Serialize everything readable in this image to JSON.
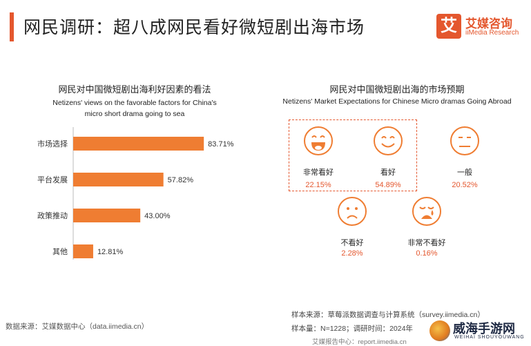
{
  "header": {
    "title": "网民调研：超八成网民看好微短剧出海市场",
    "logo_mark": "艾",
    "logo_cn": "艾媒咨询",
    "logo_en": "iiMedia Research"
  },
  "left_panel": {
    "title_cn": "网民对中国微短剧出海利好因素的看法",
    "title_en_line1": "Netizens' views on the favorable factors for China's",
    "title_en_line2": "micro short drama going to sea"
  },
  "right_panel": {
    "title_cn": "网民对中国微短剧出海的市场预期",
    "title_en": "Netizens' Market Expectations for Chinese Micro dramas Going Abroad",
    "items": [
      {
        "label": "非常看好",
        "value": "22.15%",
        "face": "very-happy"
      },
      {
        "label": "看好",
        "value": "54.89%",
        "face": "happy"
      },
      {
        "label": "一般",
        "value": "20.52%",
        "face": "neutral"
      },
      {
        "label": "不看好",
        "value": "2.28%",
        "face": "sad"
      },
      {
        "label": "非常不看好",
        "value": "0.16%",
        "face": "crying"
      }
    ]
  },
  "chart_data": {
    "type": "bar",
    "orientation": "horizontal",
    "categories": [
      "市场选择",
      "平台发展",
      "政策推动",
      "其他"
    ],
    "values": [
      83.71,
      57.82,
      43.0,
      12.81
    ],
    "value_labels": [
      "83.71%",
      "57.82%",
      "43.00%",
      "12.81%"
    ],
    "xlim": [
      0,
      100
    ],
    "grid": false,
    "color": "#ef7d32"
  },
  "footer": {
    "source_left": "数据来源：艾媒数据中心（data.iimedia.cn）",
    "sample_source": "样本来源：草莓派数据调查与计算系统（survey.iimedia.cn）",
    "sample_size": "样本量：N=1228；调研时间：2024年",
    "report_center": "艾媒报告中心：report.iimedia.cn"
  },
  "watermark": {
    "cn": "威海手游网",
    "en": "WEIHAI SHOUYOUWANG"
  },
  "colors": {
    "accent": "#e4572e",
    "bar": "#ef7d32",
    "face": "#ef7d32"
  }
}
